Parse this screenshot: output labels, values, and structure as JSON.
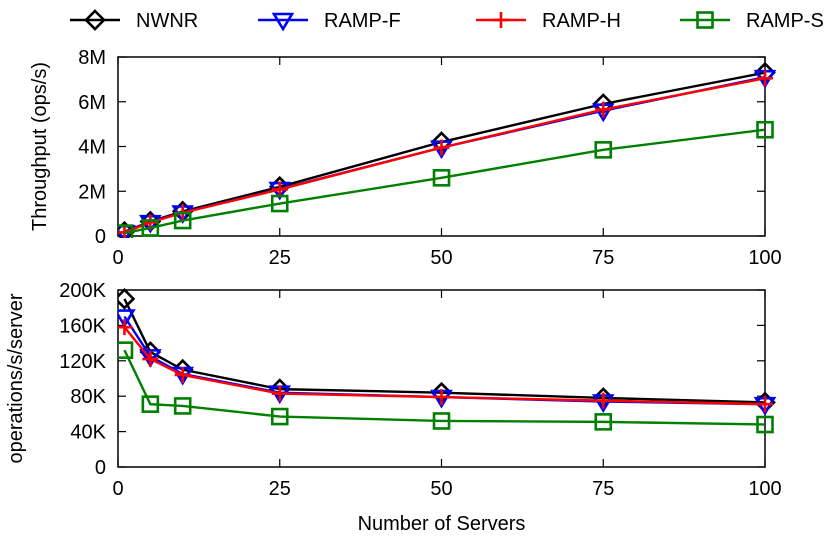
{
  "chart_data": [
    {
      "type": "line",
      "title": "",
      "xlabel": "",
      "ylabel": "Throughput (ops/s)",
      "xlim": [
        0,
        100
      ],
      "ylim": [
        0,
        8000000
      ],
      "xticks": [
        0,
        25,
        50,
        75,
        100
      ],
      "xtick_labels": [
        "0",
        "25",
        "50",
        "75",
        "100"
      ],
      "yticks": [
        0,
        2000000,
        4000000,
        6000000,
        8000000
      ],
      "ytick_labels": [
        "0",
        "2M",
        "4M",
        "6M",
        "8M"
      ],
      "grid": false,
      "legend": "top, outside plot, horizontal",
      "x": [
        1,
        5,
        10,
        25,
        50,
        75,
        100
      ],
      "series": [
        {
          "name": "NWNR",
          "color": "#000000",
          "marker": "diamond",
          "values": [
            190000,
            650000,
            1100000,
            2200000,
            4200000,
            5900000,
            7300000
          ]
        },
        {
          "name": "RAMP-F",
          "color": "#0000ff",
          "marker": "triangle-down",
          "values": [
            170000,
            620000,
            1050000,
            2100000,
            3950000,
            5600000,
            7100000
          ]
        },
        {
          "name": "RAMP-H",
          "color": "#ff0000",
          "marker": "plus",
          "values": [
            160000,
            610000,
            1040000,
            2080000,
            3950000,
            5650000,
            7050000
          ]
        },
        {
          "name": "RAMP-S",
          "color": "#008000",
          "marker": "square",
          "values": [
            130000,
            360000,
            690000,
            1450000,
            2600000,
            3850000,
            4750000
          ]
        }
      ]
    },
    {
      "type": "line",
      "title": "",
      "xlabel": "Number of Servers",
      "ylabel": "operations/s/server",
      "xlim": [
        0,
        100
      ],
      "ylim": [
        0,
        200000
      ],
      "xticks": [
        0,
        25,
        50,
        75,
        100
      ],
      "xtick_labels": [
        "0",
        "25",
        "50",
        "75",
        "100"
      ],
      "yticks": [
        0,
        40000,
        80000,
        120000,
        160000,
        200000
      ],
      "ytick_labels": [
        "0",
        "40K",
        "80K",
        "120K",
        "160K",
        "200K"
      ],
      "grid": false,
      "x": [
        1,
        5,
        10,
        25,
        50,
        75,
        100
      ],
      "series": [
        {
          "name": "NWNR",
          "color": "#000000",
          "marker": "diamond",
          "values": [
            190000,
            130000,
            110000,
            88000,
            84000,
            78000,
            73000
          ]
        },
        {
          "name": "RAMP-F",
          "color": "#0000ff",
          "marker": "triangle-down",
          "values": [
            170000,
            125000,
            105000,
            84000,
            79000,
            74000,
            71000
          ]
        },
        {
          "name": "RAMP-H",
          "color": "#ff0000",
          "marker": "plus",
          "values": [
            158000,
            122000,
            104000,
            83000,
            79000,
            75000,
            71000
          ]
        },
        {
          "name": "RAMP-S",
          "color": "#008000",
          "marker": "square",
          "values": [
            132000,
            71000,
            69000,
            57000,
            52000,
            51000,
            48000
          ]
        }
      ]
    }
  ]
}
